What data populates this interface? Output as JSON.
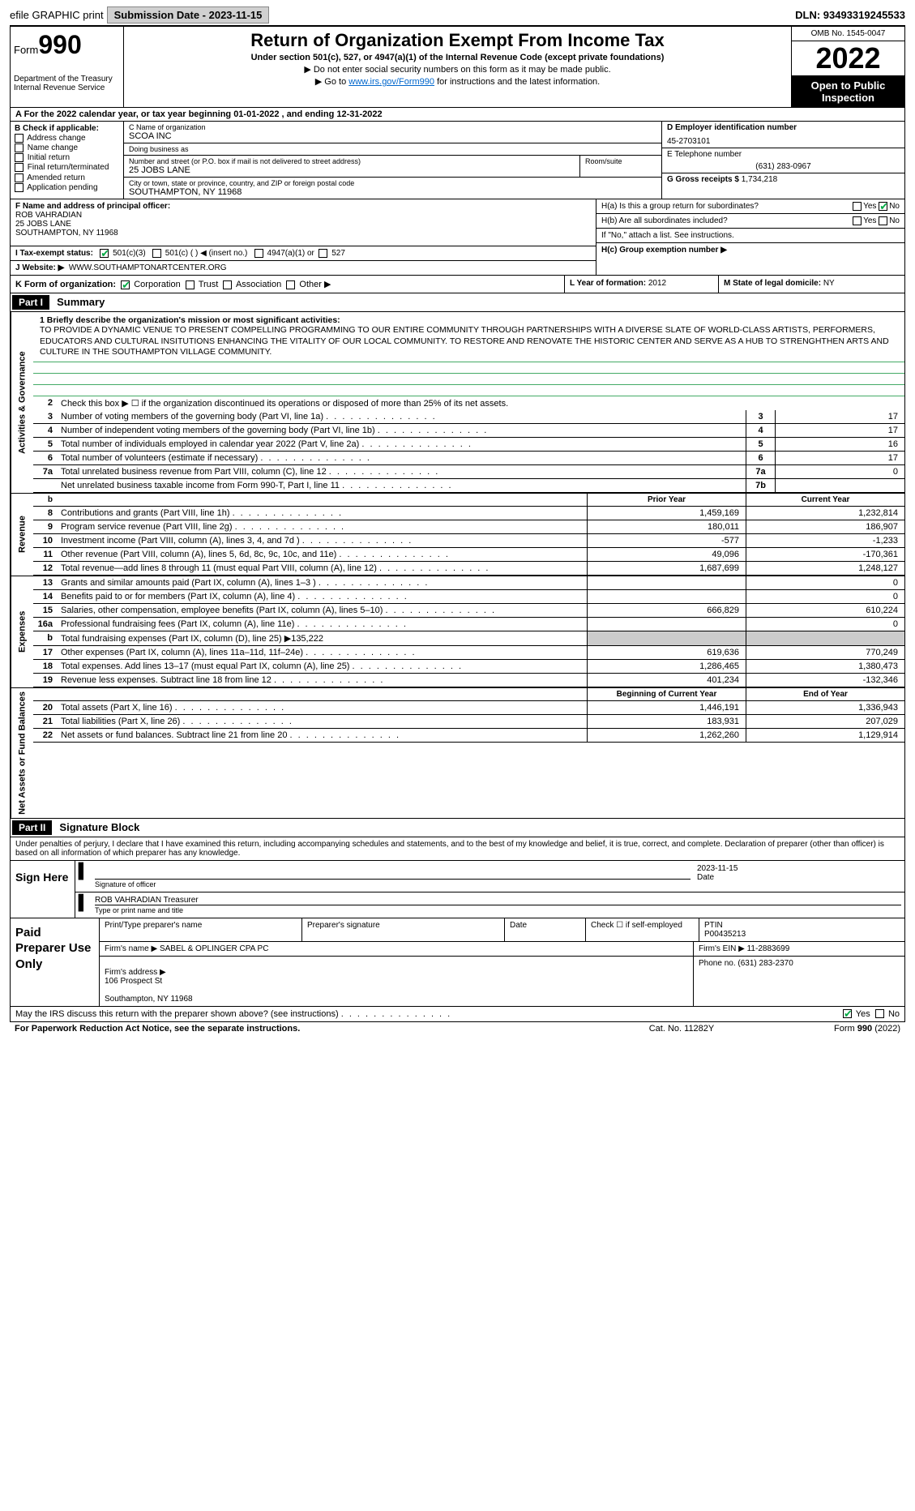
{
  "topbar": {
    "efile": "efile GRAPHIC print",
    "submission_label": "Submission Date - 2023-11-15",
    "dln_label": "DLN: 93493319245533"
  },
  "header": {
    "form_word": "Form",
    "form_number": "990",
    "dept": "Department of the Treasury\nInternal Revenue Service",
    "title": "Return of Organization Exempt From Income Tax",
    "subtitle": "Under section 501(c), 527, or 4947(a)(1) of the Internal Revenue Code (except private foundations)",
    "note1": "▶ Do not enter social security numbers on this form as it may be made public.",
    "note2_pre": "▶ Go to ",
    "note2_link": "www.irs.gov/Form990",
    "note2_post": " for instructions and the latest information.",
    "omb": "OMB No. 1545-0047",
    "year": "2022",
    "inspect": "Open to Public Inspection"
  },
  "sectA": "A For the 2022 calendar year, or tax year beginning 01-01-2022    , and ending 12-31-2022",
  "sectB": {
    "label": "B Check if applicable:",
    "opts": [
      "Address change",
      "Name change",
      "Initial return",
      "Final return/terminated",
      "Amended return",
      "Application pending"
    ]
  },
  "sectC": {
    "name_lbl": "C Name of organization",
    "name": "SCOA INC",
    "dba_lbl": "Doing business as",
    "dba": "",
    "street_lbl": "Number and street (or P.O. box if mail is not delivered to street address)",
    "street": "25 JOBS LANE",
    "room_lbl": "Room/suite",
    "city_lbl": "City or town, state or province, country, and ZIP or foreign postal code",
    "city": "SOUTHAMPTON, NY  11968"
  },
  "sectD": {
    "lbl": "D Employer identification number",
    "val": "45-2703101"
  },
  "sectE": {
    "lbl": "E Telephone number",
    "val": "(631) 283-0967"
  },
  "sectG": {
    "lbl": "G Gross receipts $",
    "val": "1,734,218"
  },
  "sectF": {
    "lbl": "F  Name and address of principal officer:",
    "name": "ROB VAHRADIAN",
    "addr1": "25 JOBS LANE",
    "addr2": "SOUTHAMPTON, NY  11968"
  },
  "sectH": {
    "a_lbl": "H(a)  Is this a group return for subordinates?",
    "a_yes": "Yes",
    "a_no": "No",
    "b_lbl": "H(b)  Are all subordinates included?",
    "b_yes": "Yes",
    "b_no": "No",
    "b_note": "If \"No,\" attach a list. See instructions.",
    "c_lbl": "H(c)  Group exemption number ▶"
  },
  "sectI": {
    "lbl": "I  Tax-exempt status:",
    "opt1": "501(c)(3)",
    "opt2": "501(c) (  ) ◀ (insert no.)",
    "opt3": "4947(a)(1) or",
    "opt4": "527"
  },
  "sectJ": {
    "lbl": "J  Website: ▶",
    "val": "WWW.SOUTHAMPTONARTCENTER.ORG"
  },
  "sectK": {
    "lbl": "K Form of organization:",
    "opts": [
      "Corporation",
      "Trust",
      "Association",
      "Other ▶"
    ]
  },
  "sectL": {
    "lbl": "L Year of formation:",
    "val": "2012"
  },
  "sectM": {
    "lbl": "M State of legal domicile:",
    "val": "NY"
  },
  "part1": {
    "header": "Part I",
    "title": "Summary",
    "mission_lbl": "1  Briefly describe the organization's mission or most significant activities:",
    "mission": "TO PROVIDE A DYNAMIC VENUE TO PRESENT COMPELLING PROGRAMMING TO OUR ENTIRE COMMUNITY THROUGH PARTNERSHIPS WITH A DIVERSE SLATE OF WORLD-CLASS ARTISTS, PERFORMERS, EDUCATORS AND CULTURAL INSITUTIONS ENHANCING THE VITALITY OF OUR LOCAL COMMUNITY. TO RESTORE AND RENOVATE THE HISTORIC CENTER AND SERVE AS A HUB TO STRENGHTHEN ARTS AND CULTURE IN THE SOUTHAMPTON VILLAGE COMMUNITY.",
    "line2": "Check this box ▶ ☐  if the organization discontinued its operations or disposed of more than 25% of its net assets.",
    "side_gov": "Activities & Governance",
    "side_rev": "Revenue",
    "side_exp": "Expenses",
    "side_net": "Net Assets or Fund Balances",
    "lines_single": [
      {
        "n": "3",
        "d": "Number of voting members of the governing body (Part VI, line 1a)",
        "box": "3",
        "v": "17"
      },
      {
        "n": "4",
        "d": "Number of independent voting members of the governing body (Part VI, line 1b)",
        "box": "4",
        "v": "17"
      },
      {
        "n": "5",
        "d": "Total number of individuals employed in calendar year 2022 (Part V, line 2a)",
        "box": "5",
        "v": "16"
      },
      {
        "n": "6",
        "d": "Total number of volunteers (estimate if necessary)",
        "box": "6",
        "v": "17"
      },
      {
        "n": "7a",
        "d": "Total unrelated business revenue from Part VIII, column (C), line 12",
        "box": "7a",
        "v": "0"
      },
      {
        "n": "",
        "d": "Net unrelated business taxable income from Form 990-T, Part I, line 11",
        "box": "7b",
        "v": ""
      }
    ],
    "col_headers": {
      "b": "b",
      "prior": "Prior Year",
      "current": "Current Year"
    },
    "lines_two": [
      {
        "n": "8",
        "d": "Contributions and grants (Part VIII, line 1h)",
        "p": "1,459,169",
        "c": "1,232,814"
      },
      {
        "n": "9",
        "d": "Program service revenue (Part VIII, line 2g)",
        "p": "180,011",
        "c": "186,907"
      },
      {
        "n": "10",
        "d": "Investment income (Part VIII, column (A), lines 3, 4, and 7d )",
        "p": "-577",
        "c": "-1,233"
      },
      {
        "n": "11",
        "d": "Other revenue (Part VIII, column (A), lines 5, 6d, 8c, 9c, 10c, and 11e)",
        "p": "49,096",
        "c": "-170,361"
      },
      {
        "n": "12",
        "d": "Total revenue—add lines 8 through 11 (must equal Part VIII, column (A), line 12)",
        "p": "1,687,699",
        "c": "1,248,127"
      }
    ],
    "lines_exp": [
      {
        "n": "13",
        "d": "Grants and similar amounts paid (Part IX, column (A), lines 1–3 )",
        "p": "",
        "c": "0"
      },
      {
        "n": "14",
        "d": "Benefits paid to or for members (Part IX, column (A), line 4)",
        "p": "",
        "c": "0"
      },
      {
        "n": "15",
        "d": "Salaries, other compensation, employee benefits (Part IX, column (A), lines 5–10)",
        "p": "666,829",
        "c": "610,224"
      },
      {
        "n": "16a",
        "d": "Professional fundraising fees (Part IX, column (A), line 11e)",
        "p": "",
        "c": "0"
      },
      {
        "n": "b",
        "d": "Total fundraising expenses (Part IX, column (D), line 25) ▶135,222",
        "p": "grey",
        "c": "grey"
      },
      {
        "n": "17",
        "d": "Other expenses (Part IX, column (A), lines 11a–11d, 11f–24e)",
        "p": "619,636",
        "c": "770,249"
      },
      {
        "n": "18",
        "d": "Total expenses. Add lines 13–17 (must equal Part IX, column (A), line 25)",
        "p": "1,286,465",
        "c": "1,380,473"
      },
      {
        "n": "19",
        "d": "Revenue less expenses. Subtract line 18 from line 12",
        "p": "401,234",
        "c": "-132,346"
      }
    ],
    "net_headers": {
      "begin": "Beginning of Current Year",
      "end": "End of Year"
    },
    "lines_net": [
      {
        "n": "20",
        "d": "Total assets (Part X, line 16)",
        "p": "1,446,191",
        "c": "1,336,943"
      },
      {
        "n": "21",
        "d": "Total liabilities (Part X, line 26)",
        "p": "183,931",
        "c": "207,029"
      },
      {
        "n": "22",
        "d": "Net assets or fund balances. Subtract line 21 from line 20",
        "p": "1,262,260",
        "c": "1,129,914"
      }
    ]
  },
  "part2": {
    "header": "Part II",
    "title": "Signature Block",
    "intro": "Under penalties of perjury, I declare that I have examined this return, including accompanying schedules and statements, and to the best of my knowledge and belief, it is true, correct, and complete. Declaration of preparer (other than officer) is based on all information of which preparer has any knowledge.",
    "sign_here": "Sign Here",
    "sig_of_officer": "Signature of officer",
    "date_lbl": "Date",
    "sig_date": "2023-11-15",
    "officer_name": "ROB VAHRADIAN  Treasurer",
    "type_name_lbl": "Type or print name and title",
    "paid_prep": "Paid Preparer Use Only",
    "prep_h": [
      "Print/Type preparer's name",
      "Preparer's signature",
      "Date",
      "Check ☐ if self-employed",
      "PTIN\nP00435213"
    ],
    "firm_name_lbl": "Firm's name    ▶",
    "firm_name": "SABEL & OPLINGER CPA PC",
    "firm_ein_lbl": "Firm's EIN ▶",
    "firm_ein": "11-2883699",
    "firm_addr_lbl": "Firm's address ▶",
    "firm_addr": "106 Prospect St\n\nSouthampton, NY  11968",
    "firm_phone_lbl": "Phone no.",
    "firm_phone": "(631) 283-2370",
    "discuss": "May the IRS discuss this return with the preparer shown above? (see instructions)",
    "yes": "Yes",
    "no": "No"
  },
  "footer": {
    "left": "For Paperwork Reduction Act Notice, see the separate instructions.",
    "mid": "Cat. No. 11282Y",
    "right_pre": "Form ",
    "right_form": "990",
    "right_post": " (2022)"
  }
}
